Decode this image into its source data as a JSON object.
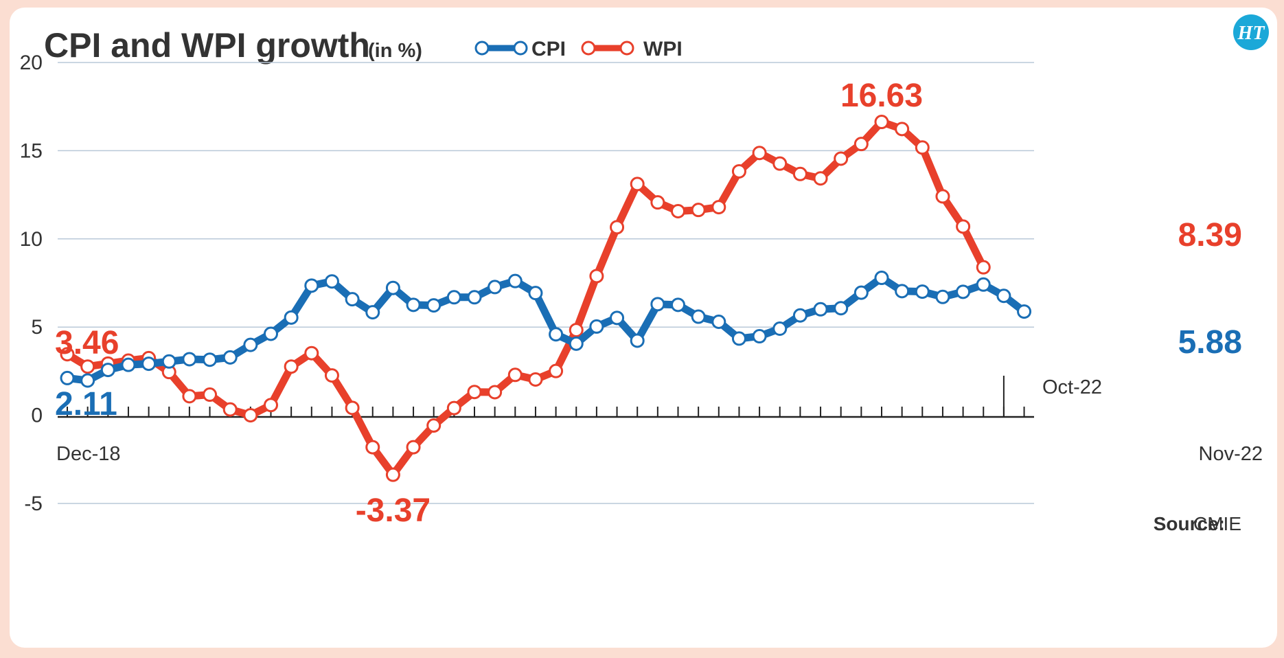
{
  "chart_data": {
    "type": "line",
    "title": "CPI and WPI growth",
    "subtitle": "(in %)",
    "ylim": [
      -5,
      20
    ],
    "yticks": [
      "20",
      "15",
      "10",
      "5",
      "0",
      "-5"
    ],
    "x_start_label": "Dec-18",
    "x_end_label": "Nov-22",
    "x_marker_label": "Oct-22",
    "grid": true,
    "legend": "top",
    "series": [
      {
        "name": "CPI",
        "color": "#1a6eb5",
        "values": [
          2.11,
          1.97,
          2.57,
          2.86,
          2.92,
          3.05,
          3.18,
          3.15,
          3.28,
          3.99,
          4.62,
          5.54,
          7.35,
          7.59,
          6.58,
          5.84,
          7.22,
          6.26,
          6.23,
          6.69,
          6.69,
          7.27,
          7.61,
          6.93,
          4.59,
          4.06,
          5.03,
          5.52,
          4.23,
          6.3,
          6.26,
          5.59,
          5.3,
          4.35,
          4.48,
          4.91,
          5.66,
          6.01,
          6.07,
          6.95,
          7.79,
          7.04,
          7.01,
          6.71,
          7.0,
          7.41,
          6.77,
          5.88
        ],
        "callouts": {
          "first": "2.11",
          "last": "5.88"
        }
      },
      {
        "name": "WPI",
        "color": "#e8402b",
        "values": [
          3.46,
          2.76,
          2.93,
          3.1,
          3.24,
          2.45,
          1.08,
          1.17,
          0.33,
          0.0,
          0.58,
          2.76,
          3.52,
          2.26,
          0.42,
          -1.81,
          -3.37,
          -1.81,
          -0.58,
          0.41,
          1.32,
          1.31,
          2.29,
          2.03,
          2.51,
          4.83,
          7.89,
          10.66,
          13.11,
          12.07,
          11.57,
          11.64,
          11.8,
          13.83,
          14.87,
          14.27,
          13.68,
          13.43,
          14.55,
          15.38,
          16.63,
          16.23,
          15.18,
          12.41,
          10.7,
          8.39
        ],
        "callouts": {
          "first": "3.46",
          "min": "-3.37",
          "max": "16.63",
          "last": "8.39"
        }
      }
    ],
    "source_label": "Source:",
    "source_value": "CMIE"
  },
  "branding": {
    "logo_text": "HT",
    "logo_color": "#1ba8d8"
  }
}
